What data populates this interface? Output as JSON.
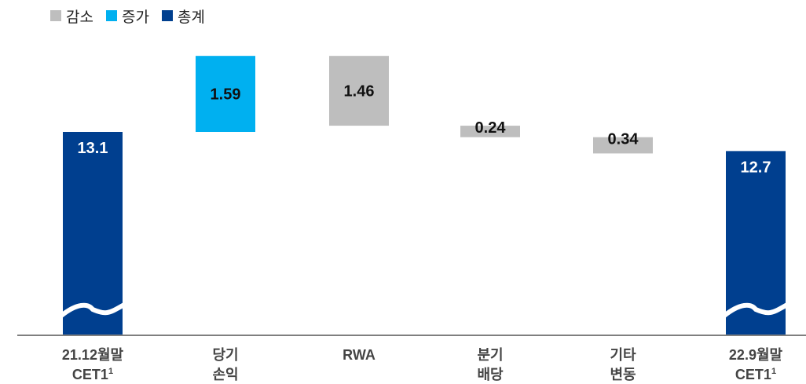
{
  "colors": {
    "decrease": "#BEBEBE",
    "increase": "#00B0F0",
    "total": "#003F8F",
    "axis": "#7F7F7F"
  },
  "legend": [
    {
      "key": "decrease",
      "label": "감소"
    },
    {
      "key": "increase",
      "label": "증가"
    },
    {
      "key": "total",
      "label": "총계"
    }
  ],
  "chart_data": {
    "type": "bar",
    "subtype": "waterfall",
    "axis_break": true,
    "categories": [
      [
        "21.12월말",
        "CET1"
      ],
      [
        "당기",
        "손익"
      ],
      [
        "RWA"
      ],
      [
        "분기",
        "배당"
      ],
      [
        "기타",
        "변동"
      ],
      [
        "22.9월말",
        "CET1"
      ]
    ],
    "superscripts": [
      "1",
      "",
      "",
      "",
      "",
      "1"
    ],
    "bars": [
      {
        "kind": "total",
        "value": 13.1,
        "label": "13.1"
      },
      {
        "kind": "increase",
        "value": 1.59,
        "label": "1.59"
      },
      {
        "kind": "decrease",
        "value": 1.46,
        "label": "1.46"
      },
      {
        "kind": "decrease",
        "value": 0.24,
        "label": "0.24"
      },
      {
        "kind": "decrease",
        "value": 0.34,
        "label": "0.34"
      },
      {
        "kind": "total",
        "value": 12.7,
        "label": "12.7"
      }
    ],
    "xlabel": "",
    "ylabel": "",
    "grid": false,
    "legend_position": "top-left"
  }
}
